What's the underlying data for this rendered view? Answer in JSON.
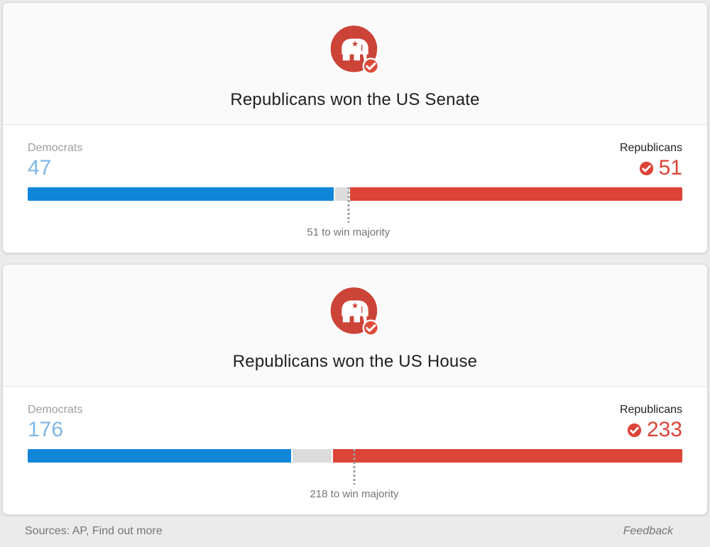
{
  "colors": {
    "page_bg": "#ebebeb",
    "card_header_bg": "#fafafa",
    "card_body_bg": "#ffffff",
    "card_border": "#d9d9d9",
    "title_text": "#212121",
    "muted_label": "#9e9e9e",
    "dark_label": "#212121",
    "dem_bar": "#1086d8",
    "dem_number": "#7fb7e6",
    "rep_bar": "#db4437",
    "rep_number": "#db4437",
    "undecided_bar": "#dcdcdc",
    "marker_dots": "#9e9e9e",
    "majority_text": "#757575",
    "footer_text": "#757575",
    "icon_circle": "#cb4437",
    "icon_badge": "#dd4b39"
  },
  "cards": [
    {
      "title": "Republicans won the US Senate",
      "icon": "gop-elephant-checked",
      "democrats": {
        "party": "Democrats",
        "seats": 47
      },
      "republicans": {
        "party": "Republicans",
        "seats": 51,
        "winner_check": true
      },
      "undecided_seats": 2,
      "total_seats": 100,
      "majority_seats": 51,
      "majority_label": "51 to win majority",
      "majority_marker_pct": 49
    },
    {
      "title": "Republicans won the US House",
      "icon": "gop-elephant-checked",
      "democrats": {
        "party": "Democrats",
        "seats": 176
      },
      "republicans": {
        "party": "Republicans",
        "seats": 233,
        "winner_check": true
      },
      "undecided_seats": 26,
      "total_seats": 435,
      "majority_seats": 218,
      "majority_label": "218 to win majority",
      "majority_marker_pct": 49.89
    }
  ],
  "footer": {
    "sources_prefix": "Sources: AP, ",
    "find_out_more": "Find out more",
    "feedback": "Feedback"
  },
  "chart_data": [
    {
      "type": "bar",
      "orientation": "horizontal-stacked",
      "title": "Republicans won the US Senate",
      "categories": [
        "Democrats",
        "Undecided",
        "Republicans"
      ],
      "values": [
        47,
        2,
        51
      ],
      "series_colors": [
        "#1086d8",
        "#dcdcdc",
        "#db4437"
      ],
      "total_seats": 100,
      "majority_threshold": 51,
      "annotation": "51 to win majority",
      "winner": "Republicans"
    },
    {
      "type": "bar",
      "orientation": "horizontal-stacked",
      "title": "Republicans won the US House",
      "categories": [
        "Democrats",
        "Undecided",
        "Republicans"
      ],
      "values": [
        176,
        26,
        233
      ],
      "series_colors": [
        "#1086d8",
        "#dcdcdc",
        "#db4437"
      ],
      "total_seats": 435,
      "majority_threshold": 218,
      "annotation": "218 to win majority",
      "winner": "Republicans"
    }
  ]
}
